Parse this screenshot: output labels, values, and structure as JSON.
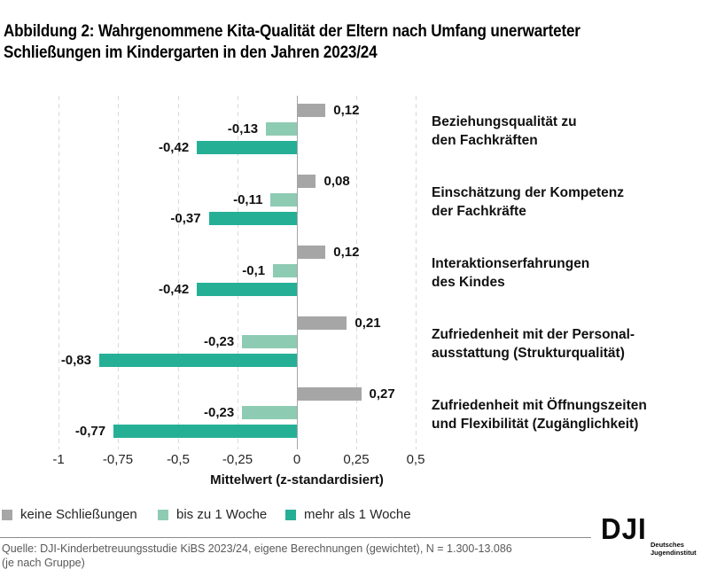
{
  "title": {
    "line1": "Abbildung 2: Wahrgenommene Kita-Qualität der Eltern nach Umfang unerwarteter",
    "line2": "Schließungen im Kindergarten in den Jahren 2023/24"
  },
  "chart_data": {
    "type": "bar",
    "orientation": "horizontal",
    "title": "Abbildung 2: Wahrgenommene Kita-Qualität der Eltern nach Umfang unerwarteter Schließungen im Kindergarten in den Jahren 2023/24",
    "xlabel": "Mittelwert (z-standardisiert)",
    "xlim": [
      -1,
      0.5
    ],
    "grid": "dashed-vertical",
    "legend_position": "bottom",
    "xticks": [
      {
        "value": -1,
        "label": "-1"
      },
      {
        "value": -0.75,
        "label": "-0,75"
      },
      {
        "value": -0.5,
        "label": "-0,5"
      },
      {
        "value": -0.25,
        "label": "-0,25"
      },
      {
        "value": 0,
        "label": "0"
      },
      {
        "value": 0.25,
        "label": "0,25"
      },
      {
        "value": 0.5,
        "label": "0,5"
      }
    ],
    "categories": [
      [
        "Beziehungsqualität zu",
        "den Fachkräften"
      ],
      [
        "Einschätzung der Kompetenz",
        "der Fachkräfte"
      ],
      [
        "Interaktionserfahrungen",
        "des Kindes"
      ],
      [
        "Zufriedenheit mit der Personal-",
        "ausstattung (Strukturqualität)"
      ],
      [
        "Zufriedenheit mit Öffnungszeiten",
        "und Flexibilität (Zugänglichkeit)"
      ]
    ],
    "series": [
      {
        "name": "keine Schließungen",
        "color": "#a6a6a6",
        "values": [
          0.12,
          0.08,
          0.12,
          0.21,
          0.27
        ],
        "value_labels": [
          "0,12",
          "0,08",
          "0,12",
          "0,21",
          "0,27"
        ]
      },
      {
        "name": "bis zu 1 Woche",
        "color": "#8ecbb3",
        "values": [
          -0.13,
          -0.11,
          -0.1,
          -0.23,
          -0.23
        ],
        "value_labels": [
          "-0,13",
          "-0,11",
          "-0,1",
          "-0,23",
          "-0,23"
        ]
      },
      {
        "name": "mehr als 1 Woche",
        "color": "#25b096",
        "values": [
          -0.42,
          -0.37,
          -0.42,
          -0.83,
          -0.77
        ],
        "value_labels": [
          "-0,42",
          "-0,37",
          "-0,42",
          "-0,83",
          "-0,77"
        ]
      }
    ]
  },
  "footer": {
    "line1": "Quelle: DJI-Kinderbetreuungsstudie KiBS 2023/24, eigene Berechnungen (gewichtet), N = 1.300-13.086",
    "line2": "(je nach Gruppe)"
  },
  "logo": {
    "text": "DJI",
    "subtext_line1": "Deutsches",
    "subtext_line2": "Jugendinstitut"
  }
}
